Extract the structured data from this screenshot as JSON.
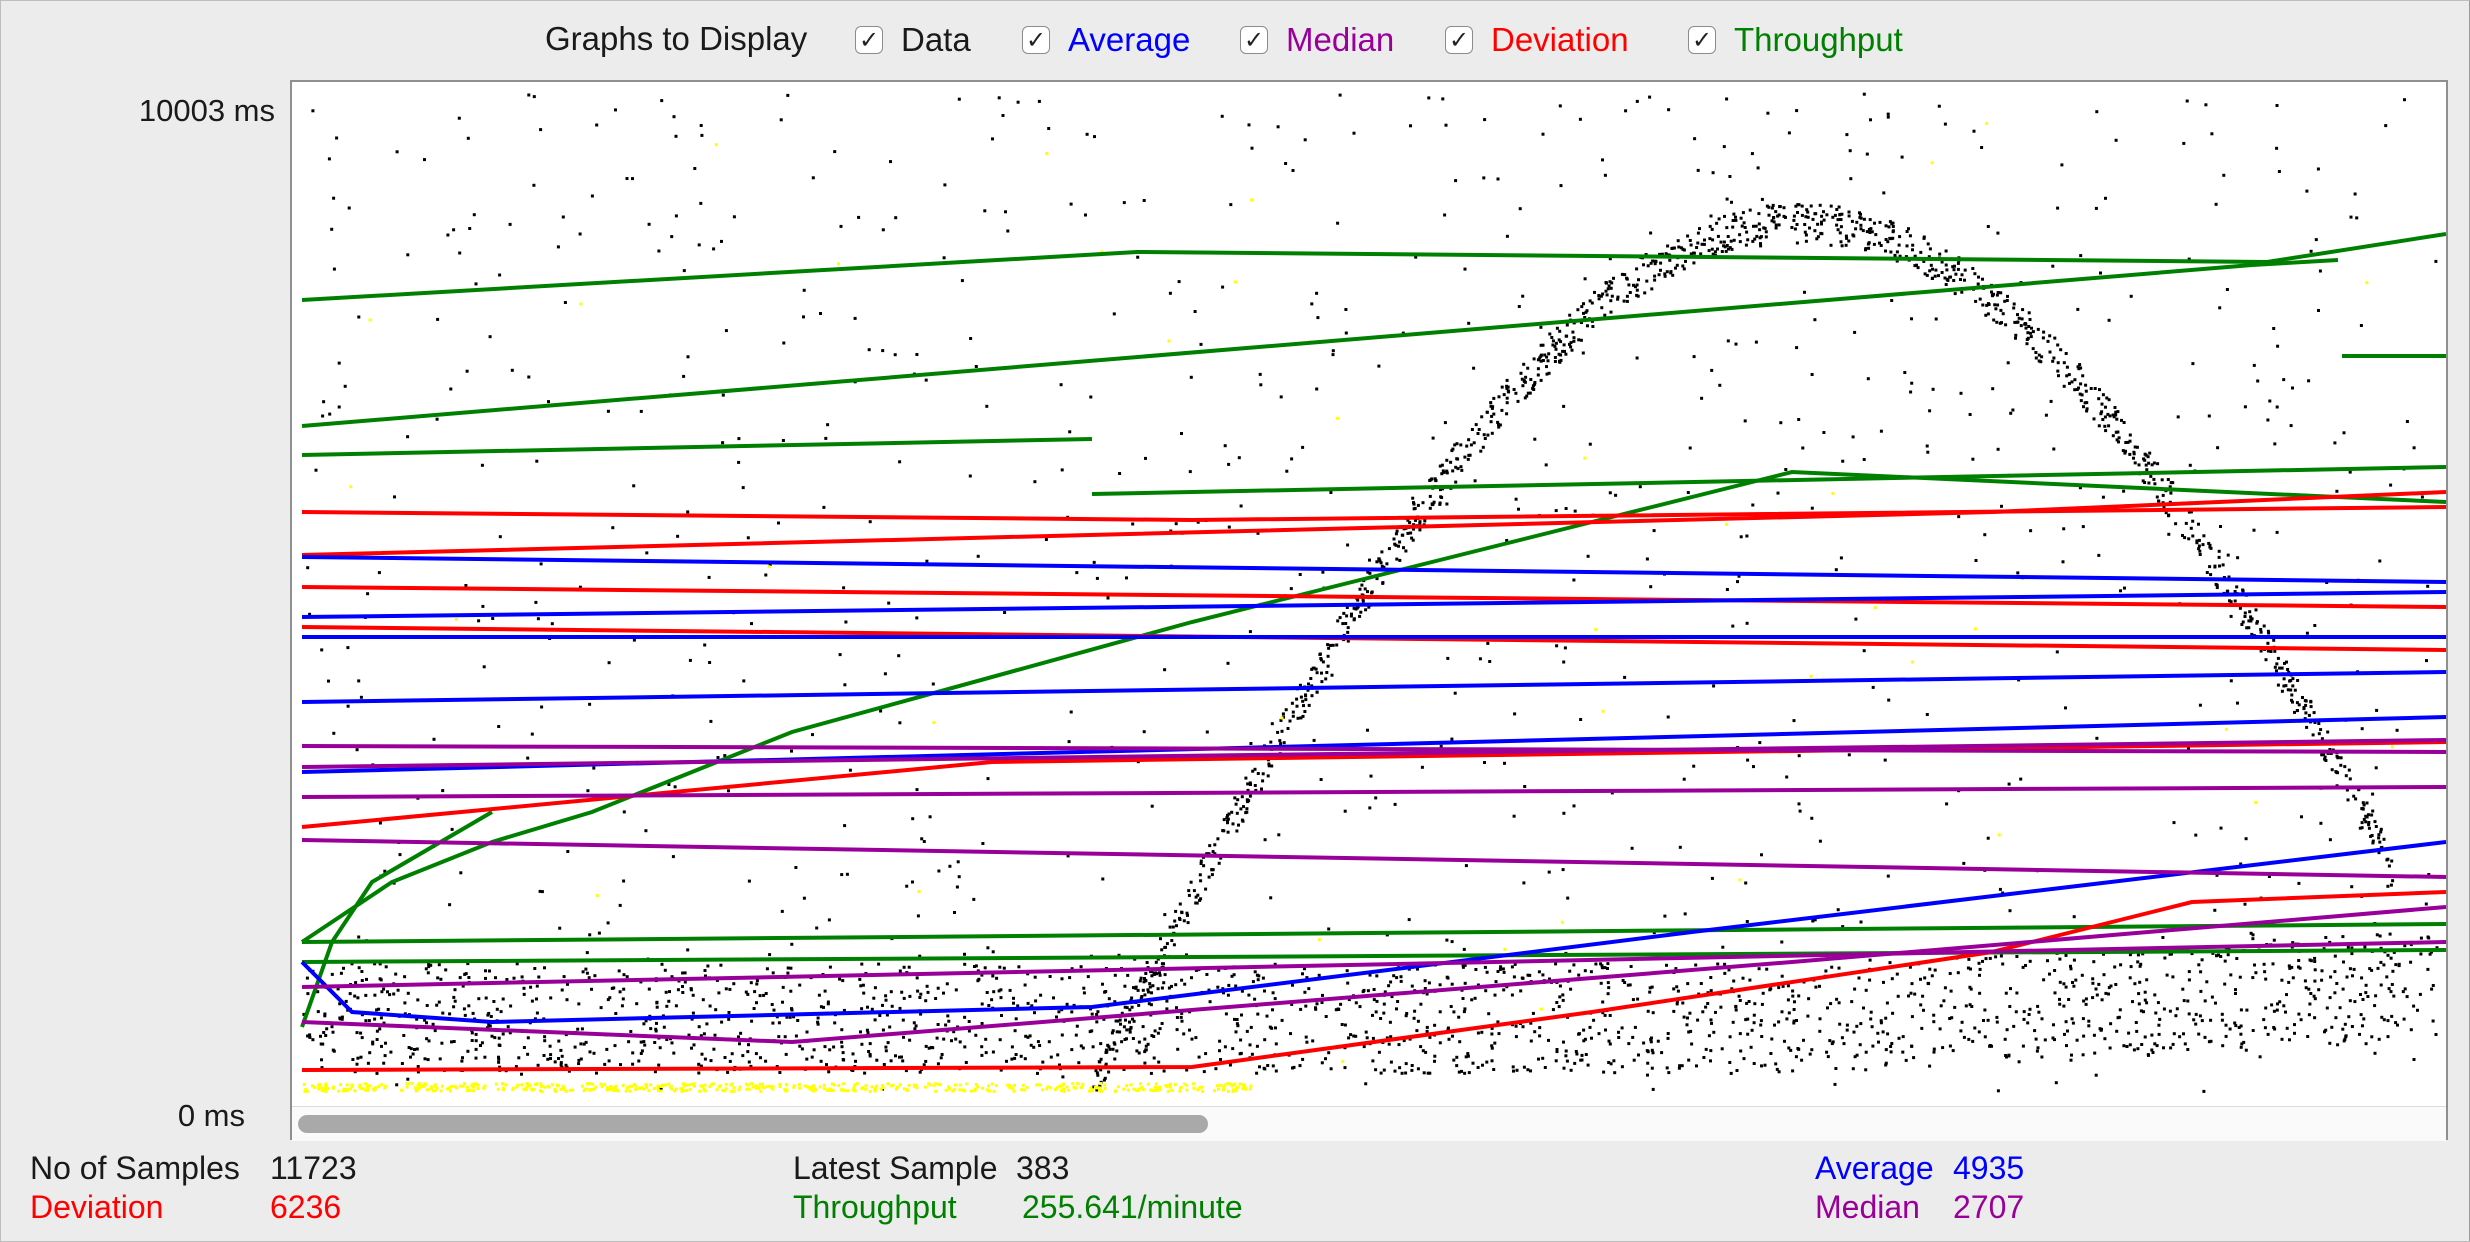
{
  "toolbar": {
    "label": "Graphs to Display",
    "options": [
      {
        "name": "data",
        "label": "Data",
        "checked": true,
        "color": "#000000"
      },
      {
        "name": "average",
        "label": "Average",
        "checked": true,
        "color": "#0000ff"
      },
      {
        "name": "median",
        "label": "Median",
        "checked": true,
        "color": "#990099"
      },
      {
        "name": "deviation",
        "label": "Deviation",
        "checked": true,
        "color": "#ff0000"
      },
      {
        "name": "throughput",
        "label": "Throughput",
        "checked": true,
        "color": "#008000"
      }
    ]
  },
  "axis": {
    "y_max_label": "10003  ms",
    "y_min_label": "0  ms"
  },
  "stats": {
    "samples_label": "No of Samples",
    "samples_value": "11723",
    "deviation_label": "Deviation",
    "deviation_value": "6236",
    "latest_label": "Latest Sample",
    "latest_value": "383",
    "throughput_label": "Throughput",
    "throughput_value": "255.641/minute",
    "average_label": "Average",
    "average_value": "4935",
    "median_label": "Median",
    "median_value": "2707"
  },
  "colors": {
    "data": "#000000",
    "average": "#0000ff",
    "median": "#990099",
    "deviation": "#ff0000",
    "throughput": "#008000",
    "highlight": "#ffff00"
  }
}
